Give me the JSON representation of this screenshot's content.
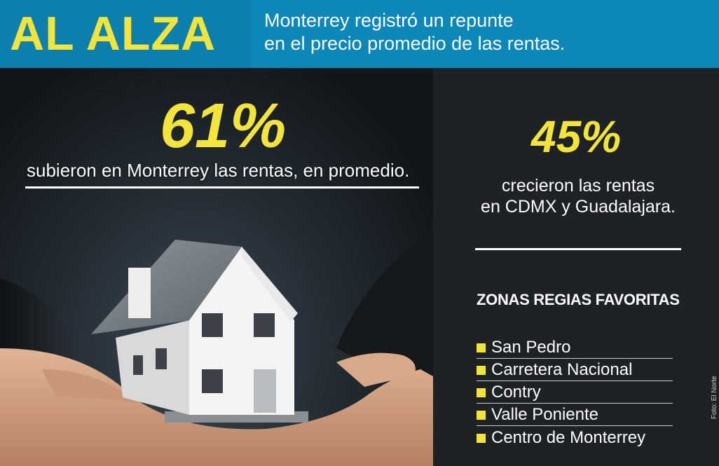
{
  "header": {
    "title": "AL ALZA",
    "subtitle_line1": "Monterrey registró un repunte",
    "subtitle_line2": "en el precio promedio de las rentas."
  },
  "main_stat": {
    "value": "61%",
    "description": "subieron en Monterrey las rentas, en promedio."
  },
  "side_stat": {
    "value": "45%",
    "description_line1": "crecieron las rentas",
    "description_line2": "en CDMX y Guadalajara."
  },
  "zones": {
    "heading": "ZONAS REGIAS FAVORITAS",
    "items": [
      "San Pedro",
      "Carretera Nacional",
      "Contry",
      "Valle Poniente",
      "Centro de Monterrey"
    ]
  },
  "credit": "Foto: El Norte",
  "colors": {
    "accent_yellow": "#f2e43a",
    "header_blue": "#0d86b8",
    "panel_dark": "#1e2226"
  }
}
